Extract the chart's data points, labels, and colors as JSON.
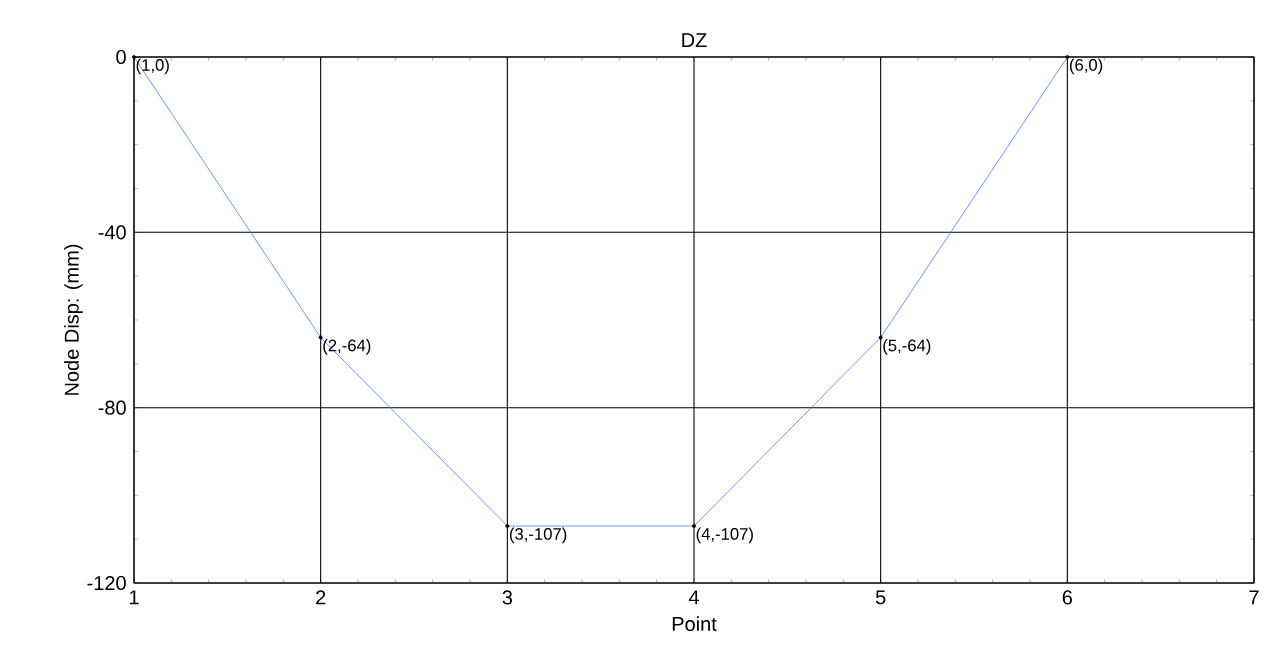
{
  "chart_data": {
    "type": "line",
    "title": "DZ",
    "xlabel": "Point",
    "ylabel": "Node Disp: (mm)",
    "x": [
      1,
      2,
      3,
      4,
      5,
      6
    ],
    "series": [
      {
        "color": "#4d7cf5",
        "values": [
          0,
          -64,
          -107,
          -107,
          -64,
          0
        ]
      }
    ],
    "annotations": [
      {
        "text": "(1,0)",
        "x": 1,
        "y": 0
      },
      {
        "text": "(2,-64)",
        "x": 2,
        "y": -64
      },
      {
        "text": "(3,-107)",
        "x": 3,
        "y": -107
      },
      {
        "text": "(4,-107)",
        "x": 4,
        "y": -107
      },
      {
        "text": "(5,-64)",
        "x": 5,
        "y": -64
      },
      {
        "text": "(6,0)",
        "x": 6,
        "y": 0
      }
    ],
    "xlim": [
      1,
      7
    ],
    "xticks": [
      1,
      2,
      3,
      4,
      5,
      6,
      7
    ],
    "ylim": [
      -120,
      0
    ],
    "yticks": [
      -120,
      -80,
      -40,
      0
    ],
    "grid": true,
    "marker": "circle",
    "line_style": "solid"
  }
}
